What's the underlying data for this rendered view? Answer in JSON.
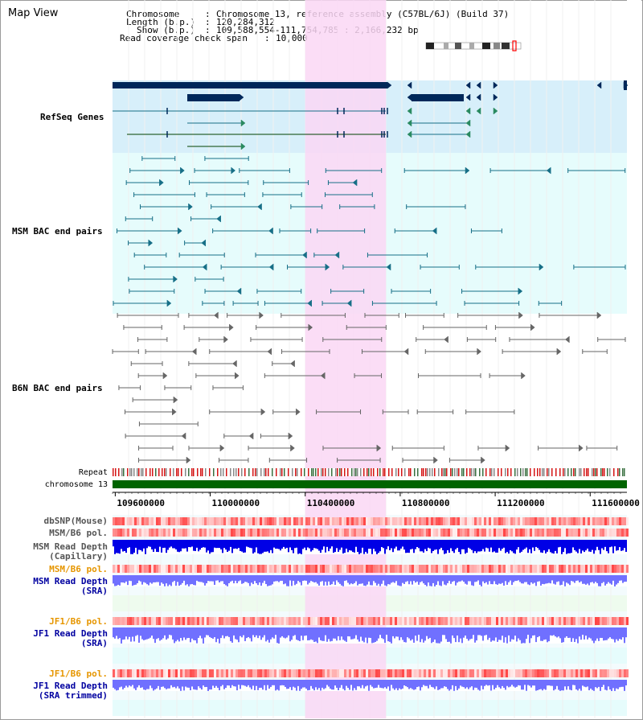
{
  "title": "Map View",
  "info": {
    "chrom_key": "Chromosome",
    "chrom_val": "Chromosome 13, reference assembly (C57BL/6J) (Build 37)",
    "length_key": "Length (b.p.)",
    "length_val": "120,284,312",
    "show_key": "Show (b.p.)",
    "show_val": "109,588,554-111,754,785 : 2,166,232 bp",
    "span_key": "Read coverage check span",
    "span_val": "10,000"
  },
  "colors": {
    "refseq_bg": "#d7effa",
    "bac_bg": "#e6fcfc",
    "highlight": "#fad7f5",
    "gene": "#00285a",
    "msm_pair": "#176f87",
    "b6n_pair": "#666666",
    "chromosome": "#006400",
    "snp": "#ff5050",
    "depth_dark": "#0000e6",
    "depth_light": "#7070ff",
    "label_blue": "#0000a0",
    "label_orange": "#e69600",
    "label_teal": "#176f87"
  },
  "tracks": {
    "refseq": "RefSeq Genes",
    "msm_bac": "MSM BAC end pairs",
    "b6n_bac": "B6N BAC end pairs",
    "repeat": "Repeat",
    "chromosome": "chromosome 13",
    "dbsnp": "dbSNP(Mouse)",
    "msm_b6_pol_1": "MSM/B6 pol.",
    "msm_depth_cap_1": "MSM Read Depth",
    "msm_depth_cap_2": "(Capillary)",
    "msm_b6_pol_2": "MSM/B6 pol.",
    "msm_depth_sra_1": "MSM Read Depth",
    "msm_depth_sra_2": "(SRA)",
    "jf1_b6_pol_1": "JF1/B6 pol.",
    "jf1_depth_sra_1": "JF1 Read Depth",
    "jf1_depth_sra_2": "(SRA)",
    "jf1_b6_pol_2": "JF1/B6 pol.",
    "jf1_depth_trim_1": "JF1 Read Depth",
    "jf1_depth_trim_2": "(SRA trimmed)"
  },
  "axis": {
    "start": 109588554,
    "end": 111754785,
    "ticks": [
      "109600000",
      "110000000",
      "110400000",
      "110800000",
      "111200000",
      "111600000"
    ],
    "tick_values": [
      109600000,
      110000000,
      110400000,
      110800000,
      111200000,
      111600000
    ]
  },
  "highlight_range": [
    110400000,
    110740000
  ]
}
